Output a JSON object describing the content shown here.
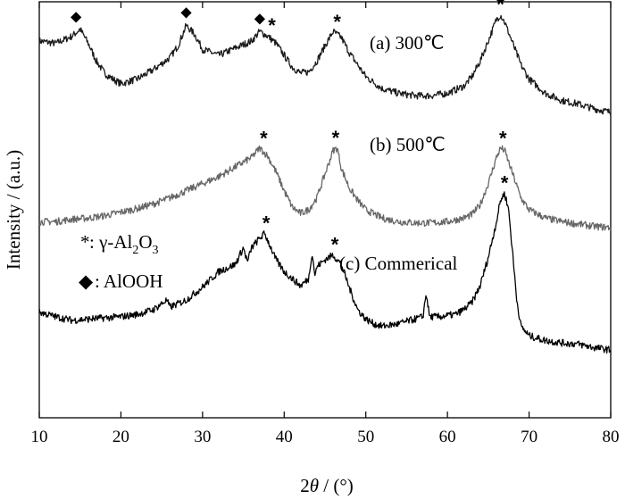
{
  "chart_data": {
    "type": "line",
    "xlabel_main": "2",
    "xlabel_theta": "θ",
    "xlabel_unit": " / (°)",
    "ylabel": "Intensity / (a.u.)",
    "xlim": [
      10,
      80
    ],
    "xticks": [
      10,
      20,
      30,
      40,
      50,
      60,
      70,
      80
    ],
    "yticks_shown": false,
    "series": [
      {
        "name": "(a) 300℃",
        "color": "#1a1a1a",
        "offset": 2.0,
        "points": [
          [
            10,
            0.62
          ],
          [
            12,
            0.6
          ],
          [
            14,
            0.66
          ],
          [
            15,
            0.72
          ],
          [
            16,
            0.6
          ],
          [
            17,
            0.45
          ],
          [
            18,
            0.35
          ],
          [
            19,
            0.3
          ],
          [
            20,
            0.26
          ],
          [
            22,
            0.3
          ],
          [
            24,
            0.38
          ],
          [
            26,
            0.48
          ],
          [
            27,
            0.58
          ],
          [
            28,
            0.75
          ],
          [
            29,
            0.68
          ],
          [
            30,
            0.55
          ],
          [
            32,
            0.5
          ],
          [
            34,
            0.56
          ],
          [
            36,
            0.62
          ],
          [
            37,
            0.7
          ],
          [
            38,
            0.66
          ],
          [
            39,
            0.6
          ],
          [
            40,
            0.5
          ],
          [
            41,
            0.4
          ],
          [
            42,
            0.35
          ],
          [
            43,
            0.36
          ],
          [
            44,
            0.45
          ],
          [
            45,
            0.58
          ],
          [
            46,
            0.7
          ],
          [
            47,
            0.65
          ],
          [
            48,
            0.52
          ],
          [
            49,
            0.42
          ],
          [
            50,
            0.32
          ],
          [
            52,
            0.22
          ],
          [
            54,
            0.18
          ],
          [
            56,
            0.16
          ],
          [
            58,
            0.16
          ],
          [
            60,
            0.18
          ],
          [
            62,
            0.24
          ],
          [
            63,
            0.32
          ],
          [
            64,
            0.45
          ],
          [
            65,
            0.62
          ],
          [
            66,
            0.8
          ],
          [
            66.5,
            0.84
          ],
          [
            67,
            0.78
          ],
          [
            68,
            0.6
          ],
          [
            69,
            0.42
          ],
          [
            70,
            0.3
          ],
          [
            72,
            0.18
          ],
          [
            74,
            0.12
          ],
          [
            76,
            0.09
          ],
          [
            78,
            0.05
          ],
          [
            80,
            0.02
          ]
        ]
      },
      {
        "name": "(b) 500℃",
        "color": "#666666",
        "offset": 1.0,
        "points": [
          [
            10,
            0.1
          ],
          [
            12,
            0.1
          ],
          [
            14,
            0.12
          ],
          [
            16,
            0.13
          ],
          [
            18,
            0.15
          ],
          [
            20,
            0.18
          ],
          [
            22,
            0.21
          ],
          [
            24,
            0.25
          ],
          [
            26,
            0.3
          ],
          [
            28,
            0.36
          ],
          [
            30,
            0.42
          ],
          [
            32,
            0.48
          ],
          [
            34,
            0.56
          ],
          [
            36,
            0.64
          ],
          [
            37,
            0.72
          ],
          [
            38,
            0.65
          ],
          [
            39,
            0.52
          ],
          [
            40,
            0.36
          ],
          [
            41,
            0.22
          ],
          [
            42,
            0.17
          ],
          [
            43,
            0.2
          ],
          [
            44,
            0.3
          ],
          [
            45,
            0.5
          ],
          [
            46,
            0.7
          ],
          [
            46.5,
            0.72
          ],
          [
            47,
            0.55
          ],
          [
            48,
            0.38
          ],
          [
            49,
            0.28
          ],
          [
            50,
            0.2
          ],
          [
            52,
            0.13
          ],
          [
            54,
            0.1
          ],
          [
            56,
            0.09
          ],
          [
            58,
            0.09
          ],
          [
            60,
            0.1
          ],
          [
            62,
            0.13
          ],
          [
            63,
            0.16
          ],
          [
            64,
            0.24
          ],
          [
            65,
            0.42
          ],
          [
            66,
            0.64
          ],
          [
            66.5,
            0.72
          ],
          [
            67,
            0.7
          ],
          [
            68,
            0.5
          ],
          [
            69,
            0.3
          ],
          [
            70,
            0.2
          ],
          [
            72,
            0.13
          ],
          [
            74,
            0.1
          ],
          [
            76,
            0.08
          ],
          [
            78,
            0.06
          ],
          [
            80,
            0.05
          ]
        ]
      },
      {
        "name": "(c) Commerical",
        "color": "#000000",
        "offset": 0.0,
        "points": [
          [
            10,
            0.34
          ],
          [
            12,
            0.3
          ],
          [
            14,
            0.27
          ],
          [
            16,
            0.28
          ],
          [
            18,
            0.29
          ],
          [
            20,
            0.3
          ],
          [
            22,
            0.32
          ],
          [
            24,
            0.36
          ],
          [
            25.6,
            0.44
          ],
          [
            26,
            0.38
          ],
          [
            28,
            0.44
          ],
          [
            30,
            0.55
          ],
          [
            32,
            0.68
          ],
          [
            34,
            0.74
          ],
          [
            35,
            0.88
          ],
          [
            35.5,
            0.76
          ],
          [
            36,
            0.88
          ],
          [
            37,
            0.96
          ],
          [
            37.6,
            1.0
          ],
          [
            38,
            0.94
          ],
          [
            39,
            0.78
          ],
          [
            40,
            0.68
          ],
          [
            41,
            0.62
          ],
          [
            42,
            0.56
          ],
          [
            43,
            0.62
          ],
          [
            43.4,
            0.84
          ],
          [
            43.8,
            0.64
          ],
          [
            44,
            0.72
          ],
          [
            45,
            0.78
          ],
          [
            46,
            0.82
          ],
          [
            47,
            0.74
          ],
          [
            48,
            0.54
          ],
          [
            49,
            0.36
          ],
          [
            50,
            0.28
          ],
          [
            51,
            0.24
          ],
          [
            52,
            0.22
          ],
          [
            54,
            0.24
          ],
          [
            56,
            0.28
          ],
          [
            57,
            0.3
          ],
          [
            57.4,
            0.5
          ],
          [
            57.8,
            0.3
          ],
          [
            59,
            0.3
          ],
          [
            61,
            0.32
          ],
          [
            62,
            0.36
          ],
          [
            63,
            0.42
          ],
          [
            64,
            0.56
          ],
          [
            65,
            0.8
          ],
          [
            66,
            1.1
          ],
          [
            66.5,
            1.28
          ],
          [
            67,
            1.34
          ],
          [
            67.5,
            1.2
          ],
          [
            68,
            0.82
          ],
          [
            68.5,
            0.44
          ],
          [
            69,
            0.22
          ],
          [
            70,
            0.14
          ],
          [
            72,
            0.1
          ],
          [
            74,
            0.08
          ],
          [
            76,
            0.07
          ],
          [
            78,
            0.04
          ],
          [
            80,
            0.02
          ]
        ]
      }
    ],
    "gamma_peaks": [
      {
        "series": 0,
        "x": 38.5
      },
      {
        "series": 0,
        "x": 46.5
      },
      {
        "series": 0,
        "x": 66.5
      },
      {
        "series": 1,
        "x": 37.5
      },
      {
        "series": 1,
        "x": 46.3
      },
      {
        "series": 1,
        "x": 66.8
      },
      {
        "series": 2,
        "x": 37.8
      },
      {
        "series": 2,
        "x": 46.2
      },
      {
        "series": 2,
        "x": 67.0
      }
    ],
    "alooh_peaks": [
      {
        "series": 0,
        "x": 14.5
      },
      {
        "series": 0,
        "x": 28.0
      },
      {
        "series": 0,
        "x": 37.0
      }
    ],
    "legend": {
      "gamma_symbol": "*",
      "gamma_label_prefix": ":  γ-Al",
      "gamma_sub1": "2",
      "gamma_mid": "O",
      "gamma_sub2": "3",
      "alooh_symbol": "◆",
      "alooh_label": ": AlOOH"
    },
    "peak_symbol": "*",
    "diamond_symbol": "◆"
  }
}
